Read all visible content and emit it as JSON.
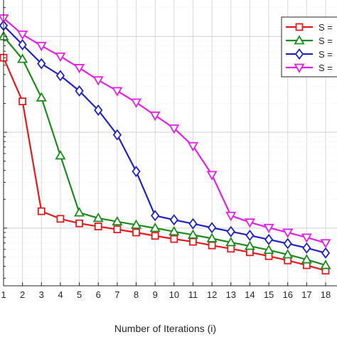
{
  "chart_data": {
    "type": "line",
    "title": "",
    "xlabel": "Number of Iterations (i)",
    "ylabel": "",
    "x_ticks": [
      1,
      2,
      3,
      4,
      5,
      6,
      7,
      8,
      9,
      10,
      11,
      12,
      13,
      14,
      15,
      16,
      17,
      18
    ],
    "x_range": [
      1,
      18.6
    ],
    "y_scale": "log",
    "grid": true,
    "legend_position": "top-right",
    "series": [
      {
        "name": "S =",
        "color": "#e41a1c",
        "marker": "square",
        "x": [
          1,
          2,
          3,
          4,
          5,
          6,
          7,
          8,
          9,
          10,
          11,
          12,
          13,
          14,
          15,
          16,
          17,
          18
        ],
        "y": [
          0.6,
          0.21,
          0.015,
          0.0125,
          0.0112,
          0.0104,
          0.0097,
          0.009,
          0.0083,
          0.0077,
          0.0072,
          0.0066,
          0.0061,
          0.0056,
          0.0051,
          0.0046,
          0.0041,
          0.0036
        ]
      },
      {
        "name": "S =",
        "color": "#1b8c1b",
        "marker": "triangle-up",
        "x": [
          1,
          2,
          3,
          4,
          5,
          6,
          7,
          8,
          9,
          10,
          11,
          12,
          13,
          14,
          15,
          16,
          17,
          18
        ],
        "y": [
          1.0,
          0.58,
          0.23,
          0.057,
          0.0145,
          0.0127,
          0.0117,
          0.0108,
          0.01,
          0.0092,
          0.0085,
          0.0078,
          0.0071,
          0.0065,
          0.0059,
          0.0053,
          0.0047,
          0.0041
        ]
      },
      {
        "name": "S =",
        "color": "#1f22c4",
        "marker": "diamond",
        "x": [
          1,
          2,
          3,
          4,
          5,
          6,
          7,
          8,
          9,
          10,
          11,
          12,
          13,
          14,
          15,
          16,
          17,
          18
        ],
        "y": [
          1.3,
          0.82,
          0.52,
          0.39,
          0.27,
          0.17,
          0.094,
          0.039,
          0.0135,
          0.0122,
          0.0111,
          0.0101,
          0.0092,
          0.0084,
          0.0076,
          0.0069,
          0.0062,
          0.0055
        ]
      },
      {
        "name": "S =",
        "color": "#e61ee6",
        "marker": "triangle-down",
        "x": [
          1,
          2,
          3,
          4,
          5,
          6,
          7,
          8,
          9,
          10,
          11,
          12,
          13,
          14,
          15,
          16,
          17,
          18
        ],
        "y": [
          1.55,
          1.05,
          0.8,
          0.62,
          0.47,
          0.35,
          0.27,
          0.205,
          0.15,
          0.11,
          0.072,
          0.036,
          0.0135,
          0.0115,
          0.0101,
          0.009,
          0.008,
          0.007
        ]
      }
    ]
  }
}
